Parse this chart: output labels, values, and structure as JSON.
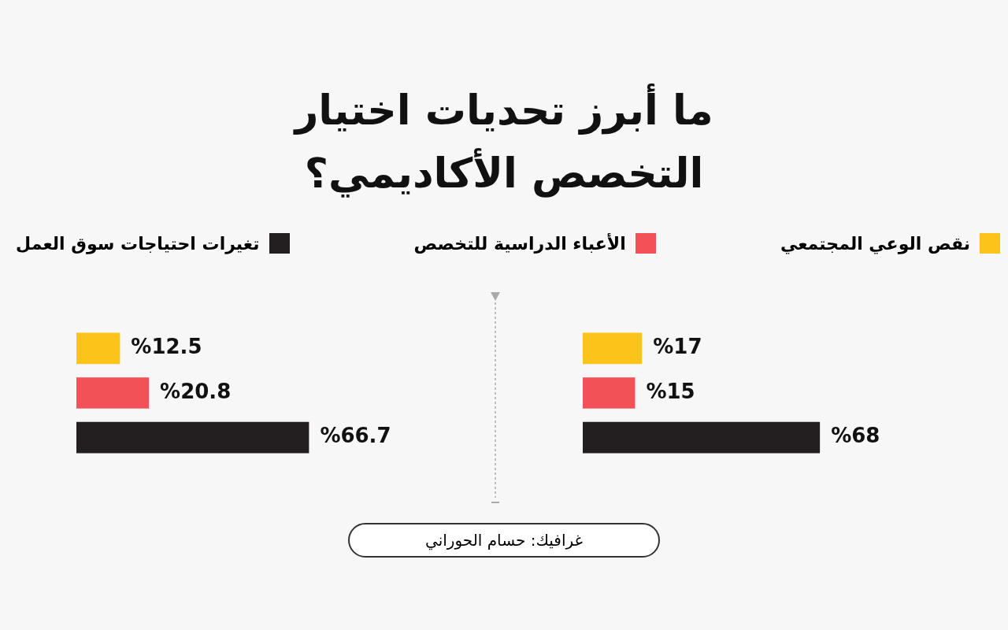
{
  "chart_data": [
    {
      "type": "bar",
      "orientation": "horizontal",
      "title": "ما أبرز تحديات اختيار التخصص الأكاديمي؟",
      "legend": "top",
      "tick_labels": false,
      "categories": [
        null
      ],
      "series": [
        {
          "name": "نقص الوعي المجتمعي",
          "color": "#fcc419",
          "values": [
            17
          ],
          "value_labels": [
            "%17"
          ]
        },
        {
          "name": "الأعباء الدراسية للتخصص",
          "color": "#f25257",
          "values": [
            15
          ],
          "value_labels": [
            "%15"
          ]
        },
        {
          "name": "تغيرات احتياجات سوق العمل",
          "color": "#231f20",
          "values": [
            68
          ],
          "value_labels": [
            "%68"
          ]
        }
      ]
    },
    {
      "type": "bar",
      "orientation": "horizontal",
      "tick_labels": false,
      "categories": [
        null
      ],
      "annotations": [
        "غرافيك: حسام الحوراني"
      ],
      "series": [
        {
          "color": "#fcc419",
          "values": [
            12.5
          ],
          "value_labels": [
            "%12.5"
          ]
        },
        {
          "color": "#f25257",
          "values": [
            20.8
          ],
          "value_labels": [
            "%20.8"
          ]
        },
        {
          "color": "#231f20",
          "values": [
            66.7
          ],
          "value_labels": [
            "%66.7"
          ]
        }
      ]
    }
  ]
}
